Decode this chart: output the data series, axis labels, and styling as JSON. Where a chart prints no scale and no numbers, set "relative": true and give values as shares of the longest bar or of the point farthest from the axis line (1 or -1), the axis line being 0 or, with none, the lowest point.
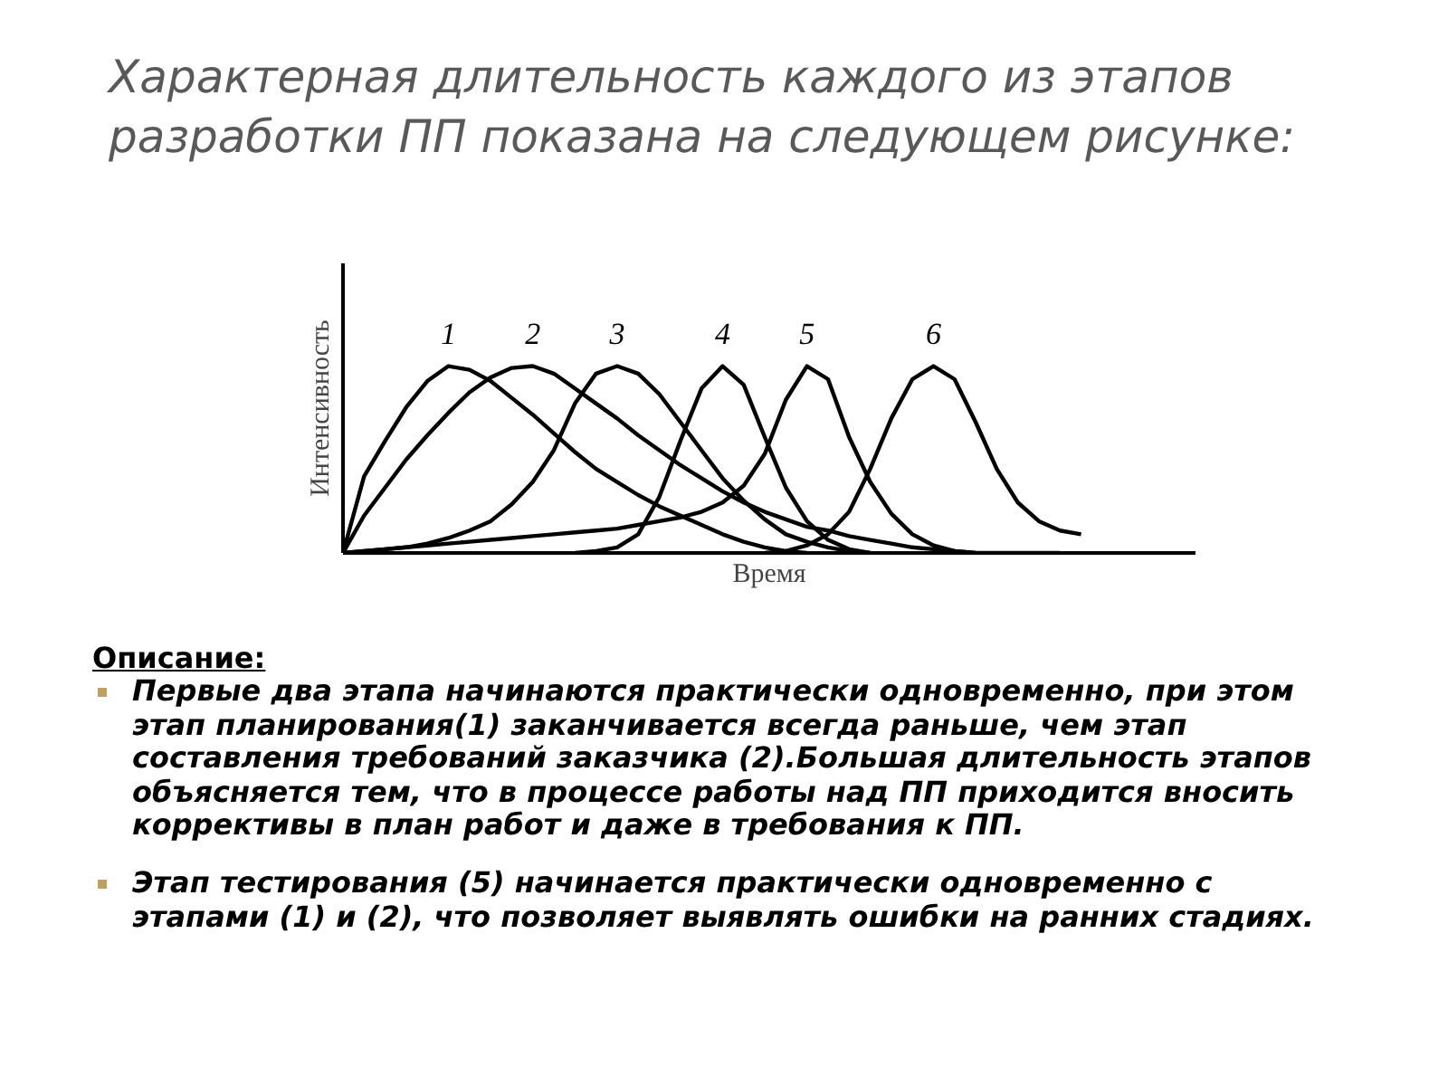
{
  "chart_data": {
    "type": "line",
    "relative": true,
    "title": "Характерная длительность каждого из этапов разработки ПП показана на следующем рисунке:",
    "xlabel": "Время",
    "ylabel": "Интенсивность",
    "categories": [
      null,
      null,
      null,
      null,
      null,
      null,
      null,
      null,
      null,
      null,
      null,
      null,
      null,
      null,
      null,
      null,
      null,
      null,
      null,
      null,
      null,
      null,
      null,
      null,
      null,
      null,
      null,
      null,
      null,
      null,
      null,
      null,
      null,
      null,
      null,
      null
    ],
    "series": [
      {
        "name": "1",
        "color": "#000000",
        "values": [
          0,
          0.41,
          0.6,
          0.78,
          0.92,
          1.0,
          0.98,
          0.92,
          0.83,
          0.74,
          0.64,
          0.54,
          0.45,
          0.38,
          0.31,
          0.25,
          0.2,
          0.15,
          0.1,
          0.06,
          0.03,
          0.01,
          0,
          null,
          null,
          null,
          null,
          null,
          null,
          null,
          null,
          null,
          null,
          null,
          null,
          null
        ]
      },
      {
        "name": "2",
        "color": "#000000",
        "values": [
          0,
          0.2,
          0.35,
          0.5,
          0.63,
          0.75,
          0.86,
          0.94,
          0.99,
          1.0,
          0.96,
          0.88,
          0.8,
          0.72,
          0.63,
          0.55,
          0.47,
          0.4,
          0.33,
          0.27,
          0.22,
          0.18,
          0.14,
          0.12,
          0.09,
          0.07,
          0.05,
          0.03,
          0.02,
          0.01,
          0,
          0,
          0,
          0,
          0,
          null
        ]
      },
      {
        "name": "3",
        "color": "#000000",
        "values": [
          0,
          0.01,
          0.02,
          0.03,
          0.05,
          0.08,
          0.12,
          0.17,
          0.26,
          0.38,
          0.55,
          0.8,
          0.96,
          1.0,
          0.96,
          0.85,
          0.7,
          0.55,
          0.4,
          0.28,
          0.18,
          0.1,
          0.06,
          0.03,
          0.01,
          0,
          null,
          null,
          null,
          null,
          null,
          null,
          null,
          null,
          null,
          null
        ]
      },
      {
        "name": "4",
        "color": "#000000",
        "values": [
          null,
          null,
          null,
          null,
          null,
          null,
          null,
          null,
          null,
          null,
          null,
          0,
          0.01,
          0.03,
          0.1,
          0.3,
          0.6,
          0.88,
          1.0,
          0.9,
          0.62,
          0.35,
          0.17,
          0.07,
          0.02,
          0,
          null,
          null,
          null,
          null,
          null,
          null,
          null,
          null,
          null,
          null
        ]
      },
      {
        "name": "5",
        "color": "#000000",
        "values": [
          0,
          0.01,
          0.02,
          0.03,
          0.04,
          0.05,
          0.06,
          0.07,
          0.08,
          0.09,
          0.1,
          0.11,
          0.12,
          0.13,
          0.15,
          0.17,
          0.19,
          0.22,
          0.27,
          0.36,
          0.53,
          0.82,
          1.0,
          0.93,
          0.62,
          0.38,
          0.21,
          0.1,
          0.04,
          0.01,
          0,
          null,
          null,
          null,
          null,
          null
        ]
      },
      {
        "name": "6",
        "color": "#000000",
        "values": [
          null,
          null,
          null,
          null,
          null,
          null,
          null,
          null,
          null,
          null,
          null,
          null,
          null,
          null,
          null,
          null,
          null,
          null,
          null,
          null,
          0,
          0.01,
          0.04,
          0.1,
          0.22,
          0.45,
          0.72,
          0.93,
          1.0,
          0.93,
          0.7,
          0.45,
          0.27,
          0.17,
          0.12,
          0.1
        ]
      }
    ],
    "annotations": [
      "Описание:",
      "Первые два этапа начинаются практически одновременно, при этом этап планирования(1) заканчивается всегда раньше, чем этап составления требований заказчика (2).Большая длительность этапов объясняется тем, что в процессе работы над ПП приходится вносить коррективы в план работ и даже в требования к ПП.",
      "Этап тестирования (5) начинается практически одновременно с этапами (1) и (2), что позволяет выявлять ошибки на ранних стадиях."
    ]
  }
}
